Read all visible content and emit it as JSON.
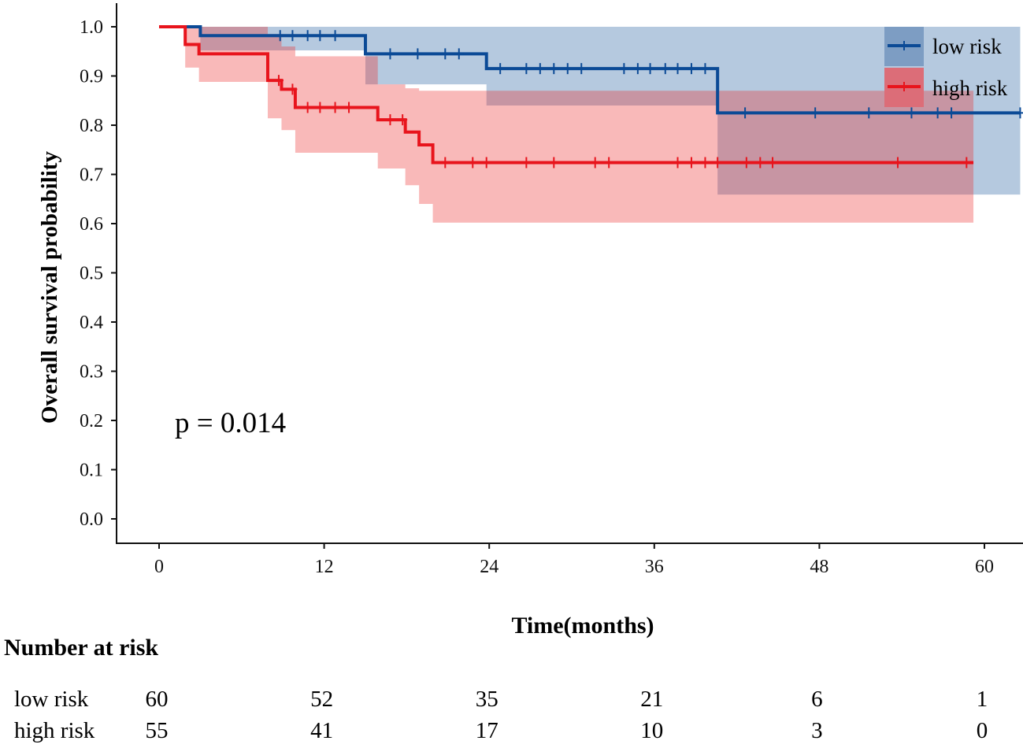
{
  "chart_data": {
    "type": "line",
    "subtype": "kaplan-meier",
    "xlabel": "Time(months)",
    "ylabel": "Overall survival probability",
    "xlim": [
      0,
      62.6
    ],
    "ylim": [
      0,
      1.0
    ],
    "x_ticks": [
      "0",
      "12",
      "24",
      "36",
      "48",
      "60"
    ],
    "x_tick_values": [
      0,
      12,
      24,
      36,
      48,
      60
    ],
    "y_ticks": [
      "0.0",
      "0.1",
      "0.2",
      "0.3",
      "0.4",
      "0.5",
      "0.6",
      "0.7",
      "0.8",
      "0.9",
      "1.0"
    ],
    "y_tick_values": [
      0,
      0.1,
      0.2,
      0.3,
      0.4,
      0.5,
      0.6,
      0.7,
      0.8,
      0.9,
      1.0
    ],
    "grid": false,
    "legend_position": "top-right",
    "annotation": "p = 0.014",
    "series": [
      {
        "name": "low risk",
        "color": "#0b4a96",
        "band_color": "#1f5b9e",
        "end_time": 62.6,
        "steps": [
          {
            "t": 0,
            "s": 1.0,
            "lo": 1.0,
            "hi": 1.0
          },
          {
            "t": 3.0,
            "s": 0.982,
            "lo": 0.952,
            "hi": 1.0
          },
          {
            "t": 15.0,
            "s": 0.945,
            "lo": 0.883,
            "hi": 1.0
          },
          {
            "t": 23.8,
            "s": 0.915,
            "lo": 0.84,
            "hi": 1.0
          },
          {
            "t": 40.6,
            "s": 0.825,
            "lo": 0.659,
            "hi": 1.0
          }
        ],
        "censored": [
          8.8,
          9.7,
          10.8,
          11.7,
          12.8,
          16.8,
          18.8,
          20.8,
          21.8,
          24.8,
          26.7,
          27.7,
          28.7,
          29.7,
          30.7,
          33.8,
          34.8,
          35.7,
          36.8,
          37.7,
          38.7,
          39.7,
          42.6,
          47.7,
          51.6,
          54.7,
          56.6,
          57.6,
          62.6
        ]
      },
      {
        "name": "high risk",
        "color": "#e8141c",
        "band_color": "#ee2a2a",
        "end_time": 59.2,
        "steps": [
          {
            "t": 0,
            "s": 1.0,
            "lo": 1.0,
            "hi": 1.0
          },
          {
            "t": 1.9,
            "s": 0.964,
            "lo": 0.917,
            "hi": 1.0
          },
          {
            "t": 2.9,
            "s": 0.945,
            "lo": 0.888,
            "hi": 1.0
          },
          {
            "t": 7.9,
            "s": 0.891,
            "lo": 0.814,
            "hi": 0.985
          },
          {
            "t": 8.9,
            "s": 0.873,
            "lo": 0.79,
            "hi": 0.96
          },
          {
            "t": 9.9,
            "s": 0.836,
            "lo": 0.744,
            "hi": 0.94
          },
          {
            "t": 15.9,
            "s": 0.811,
            "lo": 0.712,
            "hi": 0.883
          },
          {
            "t": 17.9,
            "s": 0.786,
            "lo": 0.678,
            "hi": 0.875
          },
          {
            "t": 18.9,
            "s": 0.76,
            "lo": 0.64,
            "hi": 0.87
          },
          {
            "t": 19.9,
            "s": 0.724,
            "lo": 0.602,
            "hi": 0.87
          }
        ],
        "censored": [
          8.7,
          9.7,
          10.8,
          11.7,
          12.8,
          13.8,
          16.8,
          17.7,
          20.8,
          22.8,
          23.8,
          26.7,
          28.7,
          31.7,
          32.7,
          37.7,
          38.7,
          39.7,
          40.6,
          42.7,
          43.7,
          44.6,
          53.7,
          58.7
        ]
      }
    ],
    "risk_table": {
      "title": "Number at risk",
      "rows": [
        {
          "label": "low risk",
          "values": [
            "60",
            "52",
            "35",
            "21",
            "6",
            "1"
          ]
        },
        {
          "label": "high risk",
          "values": [
            "55",
            "41",
            "17",
            "10",
            "3",
            "0"
          ]
        }
      ]
    }
  }
}
